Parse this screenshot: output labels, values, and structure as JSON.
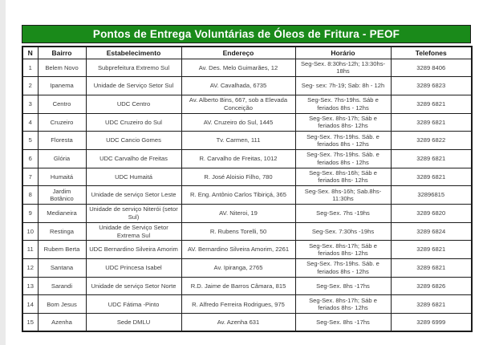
{
  "title": {
    "text": "Pontos de Entrega Voluntárias de Óleos de Fritura - PEOF",
    "background": "#1a8a1a",
    "text_color": "#ffffff"
  },
  "table": {
    "columns": [
      "N",
      "Bairro",
      "Estabelecimento",
      "Endereço",
      "Horário",
      "Telefones"
    ],
    "rows": [
      [
        "1",
        "Belem Novo",
        "Subprefeitura Extremo Sul",
        "Av. Des. Melo Guimarães, 12",
        "Seg-Sex. 8:30hs-12h; 13:30hs- 18hs",
        "3289 8406"
      ],
      [
        "2",
        "Ipanema",
        "Unidade de Serviço Setor Sul",
        "AV. Cavalhada, 6735",
        "Seg- sex: 7h-19; Sab: 8h - 12h",
        "3289 6823"
      ],
      [
        "3",
        "Centro",
        "UDC Centro",
        "Av. Alberto Bins, 667, sob a Elevada Conceição",
        "Seg-Sex. 7hs-19hs. Sáb e feriados 8hs - 12hs",
        "3289 6821"
      ],
      [
        "4",
        "Cruzeiro",
        "UDC Cruzeiro do Sul",
        "AV. Cruzeiro do Sul, 1445",
        "Seg-Sex. 8hs-17h; Sáb e feriados 8hs- 12hs",
        "3289 6821"
      ],
      [
        "5",
        "Floresta",
        "UDC Cancio Gomes",
        "Tv. Carmen, 111",
        "Seg-Sex. 7hs-19hs. Sáb. e feriados 8hs - 12hs",
        "3289 6822"
      ],
      [
        "6",
        "Glória",
        "UDC Carvalho de Freitas",
        "R. Carvalho de Freitas, 1012",
        "Seg-Sex. 7hs-19hs. Sáb. e feriados 8hs - 12hs",
        "3289 6821"
      ],
      [
        "7",
        "Humaitá",
        "UDC Humaitá",
        "R. José Aloisio Filho, 780",
        "Seg-Sex. 8hs-16h; Sáb e feriados 8hs- 12hs",
        "3289 6821"
      ],
      [
        "8",
        "Jardim Botânico",
        "Unidade de serviço Setor Leste",
        "R. Eng. Antônio Carlos Tibiriçá, 365",
        "Seg-Sex. 8hs-16h; Sab.8hs- 11:30hs",
        "32896815"
      ],
      [
        "9",
        "Medianeira",
        "Unidade de serviço Niterói (setor Sul)",
        "AV. Niteroi, 19",
        "Seg-Sex. 7hs -19hs",
        "3289 6820"
      ],
      [
        "10",
        "Restinga",
        "Unidade de Serviço Setor Extrema Sul",
        "R. Rubens Torelli, 50",
        "Seg-Sex. 7:30hs -19hs",
        "3289 6824"
      ],
      [
        "11",
        "Rubem Berta",
        "UDC Bernardino Silveira Amorim",
        "AV. Bernardino Silveira Amorim, 2261",
        "Seg-Sex. 8hs-17h; Sáb e feriados 8hs- 12hs",
        "3289 6821"
      ],
      [
        "12",
        "Santana",
        "UDC Princesa Isabel",
        "Av. Ipiranga, 2765",
        "Seg-Sex. 7hs-19hs. Sáb. e feriados 8hs - 12hs",
        "3289 6821"
      ],
      [
        "13",
        "Sarandi",
        "Unidade de serviço Setor Norte",
        "R.D. Jaime de Barros Câmara, 815",
        "Seg-Sex. 8hs -17hs",
        "3289 6826"
      ],
      [
        "14",
        "Bom Jesus",
        "UDC Fátima -Pinto",
        "R. Alfredo Ferreira Rodrigues, 975",
        "Seg-Sex. 8hs-17h; Sáb e feriados 8hs- 12hs",
        "3289 6821"
      ],
      [
        "15",
        "Azenha",
        "Sede DMLU",
        "Av. Azenha 631",
        "Seg-Sex. 8hs -17hs",
        "3289 6999"
      ]
    ]
  }
}
